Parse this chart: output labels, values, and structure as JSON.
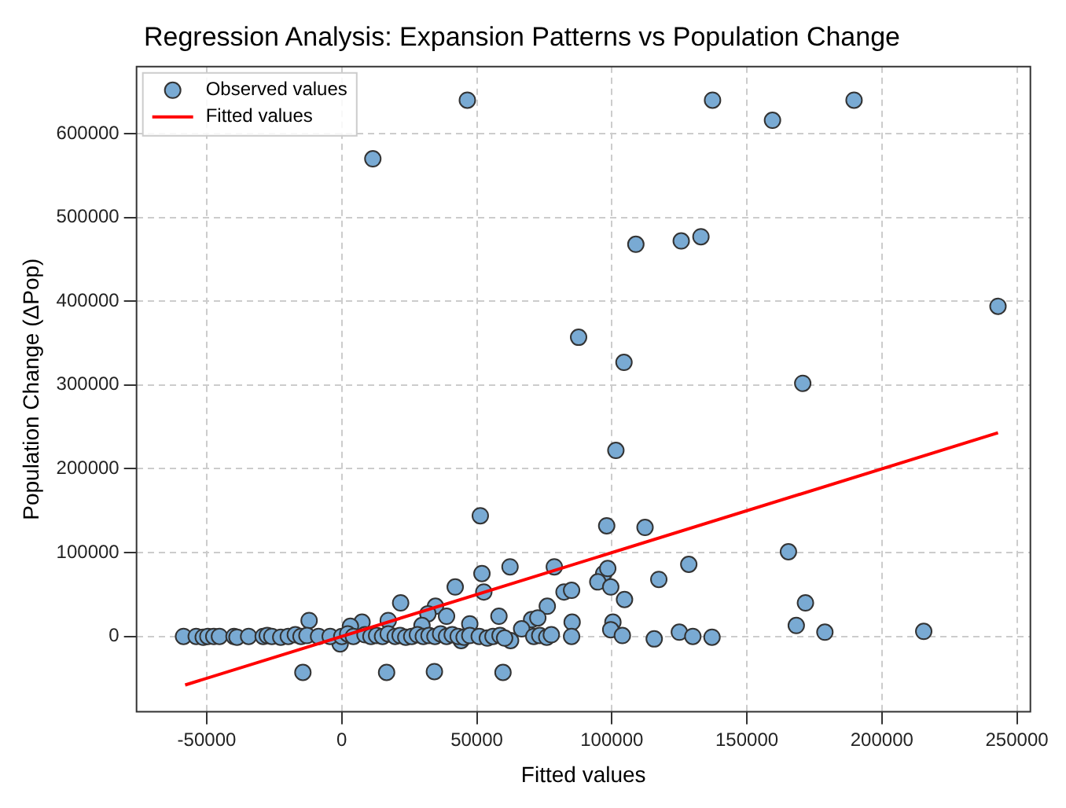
{
  "chart_data": {
    "type": "scatter",
    "title": "Regression Analysis: Expansion Patterns vs Population Change",
    "xlabel": "Fitted values",
    "ylabel": "Population Change (ΔPop)",
    "xlim": [
      -76000,
      255000
    ],
    "xticks": [
      -50000,
      0,
      50000,
      100000,
      150000,
      200000,
      250000
    ],
    "ylim": [
      -90000,
      680000
    ],
    "yticks": [
      0,
      100000,
      200000,
      300000,
      400000,
      500000,
      600000
    ],
    "grid": true,
    "legend": "top left",
    "series": [
      {
        "name": "Observed values",
        "marker": "circle",
        "color": "#79aad3",
        "x": [
          46500,
          11500,
          137300,
          159500,
          189700,
          243000,
          87700,
          108900,
          125700,
          133000,
          104500,
          170700,
          101500,
          51300,
          98100,
          112300,
          165400,
          128500,
          62300,
          78700,
          51900,
          97000,
          98500,
          94800,
          99600,
          117400,
          42000,
          52600,
          82300,
          85100,
          104700,
          21800,
          171700,
          76100,
          34700,
          38800,
          31900,
          58200,
          70300,
          72600,
          -12100,
          17200,
          7500,
          85300,
          100400,
          168300,
          47400,
          29700,
          3200,
          66600,
          99600,
          125000,
          178900,
          215500,
          103900,
          130000,
          137100,
          115700,
          62500,
          -600,
          44200,
          -14400,
          16600,
          34300,
          59700,
          -58600,
          -53900,
          -51300,
          -49600,
          -47400,
          -45300,
          -39900,
          -38800,
          -34500,
          -29100,
          -27600,
          -25900,
          -22600,
          -19800,
          -17200,
          -15100,
          -12900,
          -8600,
          -4300,
          0,
          2200,
          4300,
          8600,
          10800,
          12900,
          15100,
          17200,
          19800,
          21600,
          23700,
          25900,
          28000,
          30200,
          32300,
          34500,
          36600,
          38800,
          40900,
          43100,
          45300,
          47400,
          50900,
          53900,
          56000,
          58600,
          60300,
          71100,
          73300,
          75900,
          77600,
          85100
        ],
        "values": [
          640000,
          570000,
          640000,
          616000,
          640000,
          394000,
          357000,
          468000,
          472000,
          477000,
          327000,
          302000,
          222000,
          144000,
          132000,
          130000,
          101000,
          86000,
          83000,
          83000,
          75000,
          75000,
          81000,
          65000,
          59000,
          68000,
          59000,
          53000,
          53000,
          55000,
          44000,
          40000,
          40000,
          36000,
          36000,
          24000,
          27000,
          24000,
          20000,
          22000,
          19000,
          19000,
          17000,
          17000,
          17000,
          13000,
          15000,
          13000,
          12000,
          9000,
          8000,
          5000,
          5000,
          6000,
          1000,
          0,
          -1000,
          -3000,
          -5000,
          -9000,
          -5000,
          -43000,
          -43000,
          -42000,
          -43000,
          0,
          0,
          -1000,
          0,
          0,
          0,
          0,
          -1000,
          0,
          0,
          1000,
          0,
          -1000,
          0,
          2000,
          0,
          1000,
          0,
          0,
          0,
          3000,
          0,
          2000,
          0,
          1000,
          0,
          3000,
          0,
          1000,
          -1000,
          0,
          2000,
          0,
          1000,
          0,
          3000,
          0,
          2000,
          0,
          -1000,
          1000,
          0,
          -2000,
          0,
          1000,
          -2000,
          0,
          1000,
          -1000,
          2000,
          0
        ]
      },
      {
        "name": "Fitted values",
        "type": "line",
        "marker": "none",
        "color": "#ff0000",
        "x": [
          -58000,
          243000
        ],
        "values": [
          -58000,
          243000
        ]
      }
    ]
  }
}
